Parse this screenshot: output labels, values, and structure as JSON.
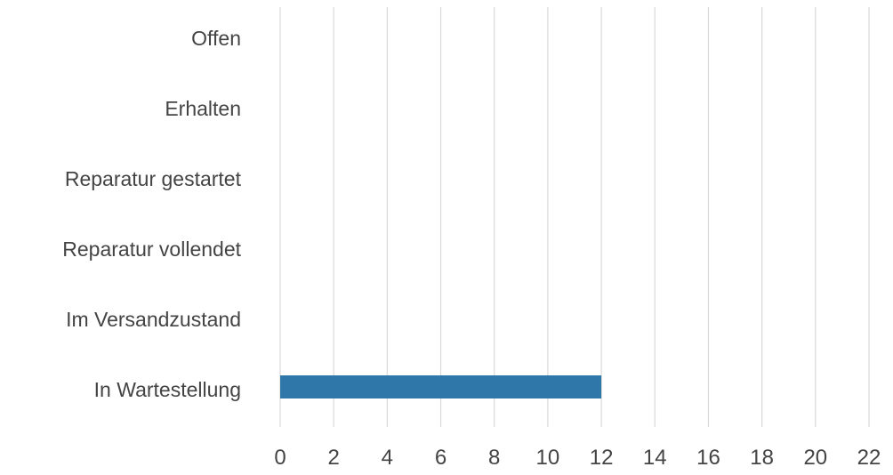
{
  "chart_data": {
    "type": "bar",
    "orientation": "horizontal",
    "categories": [
      "Offen",
      "Erhalten",
      "Reparatur gestartet",
      "Reparatur vollendet",
      "Im Versandzustand",
      "In Wartestellung"
    ],
    "values": [
      0,
      0,
      0,
      0,
      0,
      12
    ],
    "xlim": [
      0,
      22
    ],
    "x_ticks": [
      0,
      2,
      4,
      6,
      8,
      10,
      12,
      14,
      16,
      18,
      20,
      22
    ],
    "grid": true,
    "legend": "none",
    "title": "",
    "xlabel": "",
    "ylabel": "",
    "colors": {
      "bar": "#2e77a8",
      "grid": "#d9d9d9",
      "text": "#444444"
    }
  }
}
